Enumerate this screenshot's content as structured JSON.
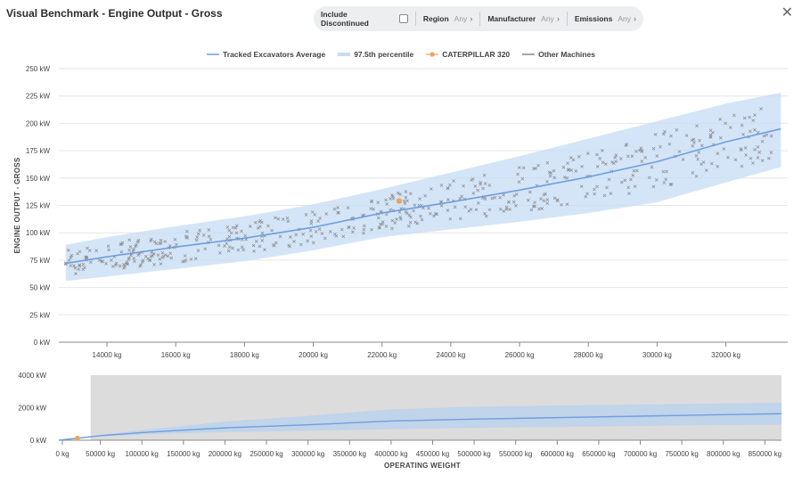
{
  "header": {
    "title": "Visual Benchmark - Engine Output - Gross",
    "close_icon": "close-icon"
  },
  "filters": {
    "include_discontinued_label": "Include Discontinued",
    "include_discontinued_checked": false,
    "region": {
      "label": "Region",
      "value": "Any"
    },
    "manufacturer": {
      "label": "Manufacturer",
      "value": "Any"
    },
    "emissions": {
      "label": "Emissions",
      "value": "Any"
    }
  },
  "legend": [
    {
      "label": "Tracked Excavators Average",
      "color": "#6f9ee0",
      "symbol": "line"
    },
    {
      "label": "97.5th percentile",
      "color": "#c5dcf5",
      "symbol": "band"
    },
    {
      "label": "CATERPILLAR 320",
      "color": "#f0a35e",
      "symbol": "dot-line"
    },
    {
      "label": "Other Machines",
      "color": "#888888",
      "symbol": "line"
    }
  ],
  "chart_data": [
    {
      "type": "scatter",
      "ylabel": "ENGINE OUTPUT - GROSS",
      "xlim": [
        12600,
        33800
      ],
      "ylim": [
        0,
        250
      ],
      "grid": true,
      "x_ticks": [
        "14000 kg",
        "16000 kg",
        "18000 kg",
        "20000 kg",
        "22000 kg",
        "24000 kg",
        "26000 kg",
        "28000 kg",
        "30000 kg",
        "32000 kg"
      ],
      "x_tick_values": [
        14000,
        16000,
        18000,
        20000,
        22000,
        24000,
        26000,
        28000,
        30000,
        32000
      ],
      "y_ticks": [
        "0 kW",
        "25 kW",
        "50 kW",
        "75 kW",
        "100 kW",
        "125 kW",
        "150 kW",
        "175 kW",
        "200 kW",
        "225 kW",
        "250 kW"
      ],
      "y_tick_values": [
        0,
        25,
        50,
        75,
        100,
        125,
        150,
        175,
        200,
        225,
        250
      ],
      "average": {
        "x": [
          12800,
          14000,
          16000,
          18000,
          20000,
          22000,
          24000,
          26000,
          28000,
          30000,
          32000,
          33600
        ],
        "y": [
          72,
          78,
          87,
          95,
          105,
          118,
          128,
          139,
          151,
          165,
          183,
          195
        ]
      },
      "band_upper": {
        "x": [
          12800,
          14000,
          16000,
          18000,
          20000,
          22000,
          24000,
          26000,
          28000,
          30000,
          32000,
          33600
        ],
        "y": [
          89,
          96,
          106,
          115,
          126,
          140,
          155,
          170,
          186,
          202,
          218,
          228
        ]
      },
      "band_lower": {
        "x": [
          12800,
          14000,
          16000,
          18000,
          20000,
          22000,
          24000,
          26000,
          28000,
          30000,
          32000,
          33600
        ],
        "y": [
          56,
          60,
          67,
          74,
          84,
          96,
          103,
          110,
          118,
          128,
          146,
          160
        ]
      },
      "highlight": {
        "name": "CATERPILLAR 320",
        "x": 22500,
        "y": 129
      },
      "others_note": "Other Machines"
    },
    {
      "type": "line",
      "xlabel": "OPERATING WEIGHT",
      "xlim": [
        0,
        870000
      ],
      "ylim": [
        0,
        4000
      ],
      "x_ticks": [
        "0 kg",
        "50000 kg",
        "100000 kg",
        "150000 kg",
        "200000 kg",
        "250000 kg",
        "300000 kg",
        "350000 kg",
        "400000 kg",
        "450000 kg",
        "500000 kg",
        "550000 kg",
        "600000 kg",
        "650000 kg",
        "700000 kg",
        "750000 kg",
        "800000 kg",
        "850000 kg"
      ],
      "x_tick_values": [
        0,
        50000,
        100000,
        150000,
        200000,
        250000,
        300000,
        350000,
        400000,
        450000,
        500000,
        550000,
        600000,
        650000,
        700000,
        750000,
        800000,
        850000
      ],
      "y_ticks": [
        "0 kW",
        "2000 kW",
        "4000 kW"
      ],
      "y_tick_values": [
        0,
        2000,
        4000
      ],
      "average": {
        "x": [
          0,
          50000,
          100000,
          150000,
          200000,
          300000,
          400000,
          500000,
          600000,
          700000,
          800000,
          870000
        ],
        "y": [
          0,
          280,
          470,
          620,
          760,
          950,
          1180,
          1300,
          1390,
          1480,
          1570,
          1630
        ]
      },
      "band_upper": {
        "x": [
          0,
          50000,
          100000,
          150000,
          200000,
          300000,
          400000,
          500000,
          600000,
          700000,
          800000,
          870000
        ],
        "y": [
          0,
          320,
          620,
          880,
          1150,
          1500,
          1900,
          2060,
          2140,
          2200,
          2260,
          2300
        ]
      },
      "band_lower": {
        "x": [
          0,
          50000,
          100000,
          150000,
          200000,
          300000,
          400000,
          500000,
          600000,
          700000,
          800000,
          870000
        ],
        "y": [
          0,
          230,
          360,
          430,
          490,
          580,
          680,
          760,
          820,
          880,
          930,
          960
        ]
      },
      "highlight": {
        "name": "CATERPILLAR 320",
        "x": 22500,
        "y": 129
      },
      "brush_range": [
        12600,
        33800
      ]
    }
  ]
}
